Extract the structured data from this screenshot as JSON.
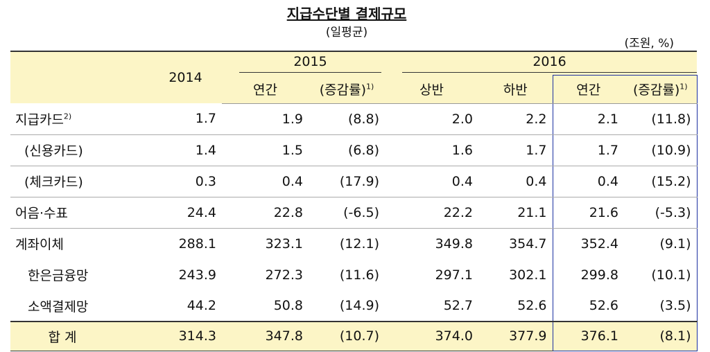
{
  "header": {
    "title": "지급수단별 결제규모",
    "subtitle": "(일평균)",
    "unit": "(조원, %)"
  },
  "table": {
    "years": [
      "2014",
      "2015",
      "2016"
    ],
    "columns": [
      {
        "text": "연간"
      },
      {
        "text": "(증감률)",
        "note": "1)"
      },
      {
        "text": "상반"
      },
      {
        "text": "하반"
      },
      {
        "text": "연간"
      },
      {
        "text": "(증감률)",
        "note": "1)"
      }
    ],
    "rows": [
      {
        "label": "지급카드",
        "note": "2)",
        "values": [
          "1.7",
          "1.9",
          "(8.8)",
          "2.0",
          "2.2",
          "2.1",
          "(11.8)"
        ]
      },
      {
        "label": "(신용카드)",
        "values": [
          "1.4",
          "1.5",
          "(6.8)",
          "1.6",
          "1.7",
          "1.7",
          "(10.9)"
        ]
      },
      {
        "label": "(체크카드)",
        "values": [
          "0.3",
          "0.4",
          "(17.9)",
          "0.4",
          "0.4",
          "0.4",
          "(15.2)"
        ]
      },
      {
        "label": "어음·수표",
        "values": [
          "24.4",
          "22.8",
          "(-6.5)",
          "22.2",
          "21.1",
          "21.6",
          "(-5.3)"
        ]
      },
      {
        "label": "계좌이체",
        "values": [
          "288.1",
          "323.1",
          "(12.1)",
          "349.8",
          "354.7",
          "352.4",
          "(9.1)"
        ]
      },
      {
        "label": "한은금융망",
        "values": [
          "243.9",
          "272.3",
          "(11.6)",
          "297.1",
          "302.1",
          "299.8",
          "(10.1)"
        ]
      },
      {
        "label": "소액결제망",
        "values": [
          "44.2",
          "50.8",
          "(14.9)",
          "52.7",
          "52.6",
          "52.6",
          "(3.5)"
        ]
      },
      {
        "label": "합 계",
        "values": [
          "314.3",
          "347.8",
          "(10.7)",
          "374.0",
          "377.9",
          "376.1",
          "(8.1)"
        ]
      }
    ]
  }
}
